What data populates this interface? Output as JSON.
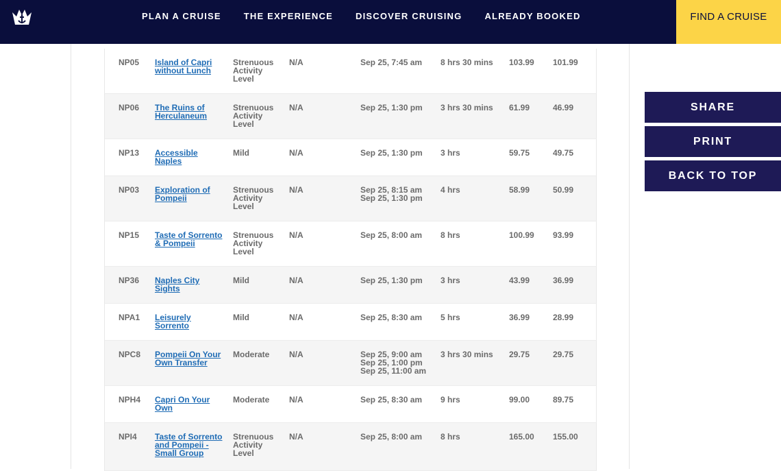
{
  "nav": {
    "links": [
      "PLAN A CRUISE",
      "THE EXPERIENCE",
      "DISCOVER CRUISING",
      "ALREADY BOOKED"
    ],
    "cta": "FIND A CRUISE"
  },
  "colors": {
    "nav_bg": "#0a0e3c",
    "cta_bg": "#fcd447",
    "side_btn_bg": "#1e1a56",
    "link": "#1f6cb5"
  },
  "side_buttons": {
    "share": "SHARE",
    "print": "PRINT",
    "back_to_top": "BACK TO TOP"
  },
  "rows": [
    {
      "code": "NP05",
      "name": "Island of Capri without Lunch",
      "activity": "Strenuous Activity Level",
      "language": "N/A",
      "times": [
        "Sep 25, 7:45 am"
      ],
      "duration": "8 hrs 30 mins",
      "price1": "103.99",
      "price2": "101.99"
    },
    {
      "code": "NP06",
      "name": "The Ruins of Herculaneum",
      "activity": "Strenuous Activity Level",
      "language": "N/A",
      "times": [
        "Sep 25, 1:30 pm"
      ],
      "duration": "3 hrs 30 mins",
      "price1": "61.99",
      "price2": "46.99"
    },
    {
      "code": "NP13",
      "name": "Accessible Naples",
      "activity": "Mild",
      "language": "N/A",
      "times": [
        "Sep 25, 1:30 pm"
      ],
      "duration": "3 hrs",
      "price1": "59.75",
      "price2": "49.75"
    },
    {
      "code": "NP03",
      "name": "Exploration of Pompeii",
      "activity": "Strenuous Activity Level",
      "language": "N/A",
      "times": [
        "Sep 25, 8:15 am",
        "Sep 25, 1:30 pm"
      ],
      "duration": "4 hrs",
      "price1": "58.99",
      "price2": "50.99"
    },
    {
      "code": "NP15",
      "name": "Taste of Sorrento & Pompeii",
      "activity": "Strenuous Activity Level",
      "language": "N/A",
      "times": [
        "Sep 25, 8:00 am"
      ],
      "duration": "8 hrs",
      "price1": "100.99",
      "price2": "93.99"
    },
    {
      "code": "NP36",
      "name": "Naples City Sights",
      "activity": "Mild",
      "language": "N/A",
      "times": [
        "Sep 25, 1:30 pm"
      ],
      "duration": "3 hrs",
      "price1": "43.99",
      "price2": "36.99"
    },
    {
      "code": "NPA1",
      "name": "Leisurely Sorrento",
      "activity": "Mild",
      "language": "N/A",
      "times": [
        "Sep 25, 8:30 am"
      ],
      "duration": "5 hrs",
      "price1": "36.99",
      "price2": "28.99"
    },
    {
      "code": "NPC8",
      "name": "Pompeii On Your Own Transfer",
      "activity": "Moderate",
      "language": "N/A",
      "times": [
        "Sep 25, 9:00 am",
        "Sep 25, 1:00 pm",
        "Sep 25, 11:00 am"
      ],
      "duration": "3 hrs 30 mins",
      "price1": "29.75",
      "price2": "29.75"
    },
    {
      "code": "NPH4",
      "name": "Capri On Your Own",
      "activity": "Moderate",
      "language": "N/A",
      "times": [
        "Sep 25, 8:30 am"
      ],
      "duration": "9 hrs",
      "price1": "99.00",
      "price2": "89.75"
    },
    {
      "code": "NPI4",
      "name": "Taste of Sorrento and Pompeii - Small Group",
      "activity": "Strenuous Activity Level",
      "language": "N/A",
      "times": [
        "Sep 25, 8:00 am"
      ],
      "duration": "8 hrs",
      "price1": "165.00",
      "price2": "155.00"
    }
  ]
}
